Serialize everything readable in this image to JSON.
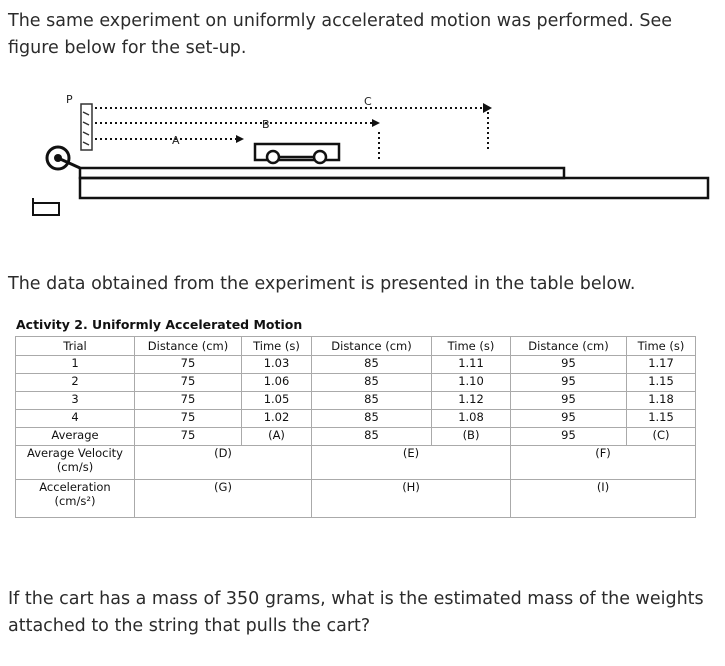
{
  "intro": "The same experiment on uniformly accelerated motion was performed. See figure below for the set-up.",
  "figure": {
    "label_p": "P",
    "label_a": "A",
    "label_b": "B",
    "label_c": "C"
  },
  "table_intro": "The data obtained from the experiment is presented in the table below.",
  "activity_title": "Activity 2. Uniformly Accelerated Motion",
  "table": {
    "headers": [
      "Trial",
      "Distance (cm)",
      "Time (s)",
      "Distance (cm)",
      "Time (s)",
      "Distance (cm)",
      "Time (s)"
    ],
    "rows": [
      [
        "1",
        "75",
        "1.03",
        "85",
        "1.11",
        "95",
        "1.17"
      ],
      [
        "2",
        "75",
        "1.06",
        "85",
        "1.10",
        "95",
        "1.15"
      ],
      [
        "3",
        "75",
        "1.05",
        "85",
        "1.12",
        "95",
        "1.18"
      ],
      [
        "4",
        "75",
        "1.02",
        "85",
        "1.08",
        "95",
        "1.15"
      ],
      [
        "Average",
        "75",
        "(A)",
        "85",
        "(B)",
        "95",
        "(C)"
      ]
    ],
    "velocity_label": "Average Velocity (cm/s)",
    "velocity_values": [
      "(D)",
      "(E)",
      "(F)"
    ],
    "acceleration_label": "Acceleration (cm/s²)",
    "acceleration_values": [
      "(G)",
      "(H)",
      "(I)"
    ]
  },
  "question": "If the cart has a mass of 350 grams, what is the estimated mass of the weights attached to the string that pulls the cart?"
}
